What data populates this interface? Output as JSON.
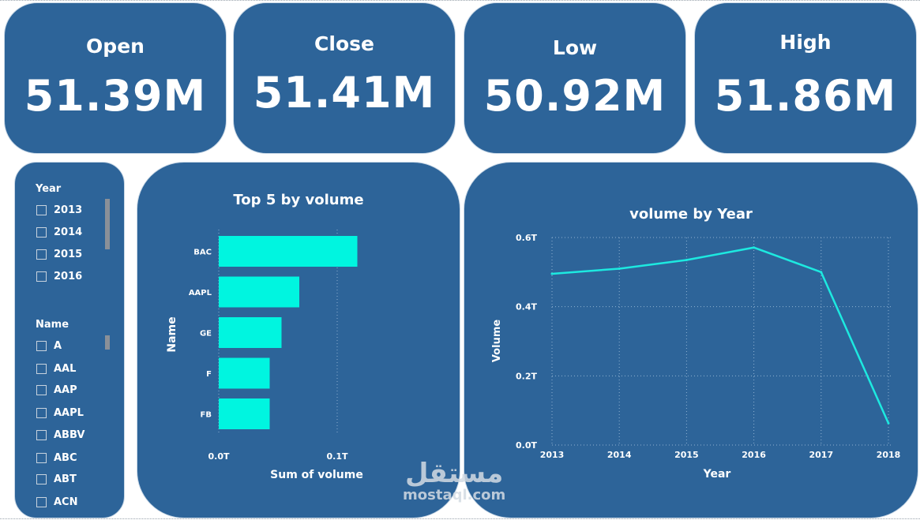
{
  "kpis": {
    "open": {
      "label": "Open",
      "value": "51.39M"
    },
    "close": {
      "label": "Close",
      "value": "51.41M"
    },
    "low": {
      "label": "Low",
      "value": "50.92M"
    },
    "high": {
      "label": "High",
      "value": "51.86M"
    }
  },
  "slicers": {
    "year": {
      "header": "Year",
      "items": [
        "2013",
        "2014",
        "2015",
        "2016"
      ]
    },
    "name": {
      "header": "Name",
      "items": [
        "A",
        "AAL",
        "AAP",
        "AAPL",
        "ABBV",
        "ABC",
        "ABT",
        "ACN"
      ]
    }
  },
  "chart_data": [
    {
      "type": "bar",
      "orientation": "horizontal",
      "title": "Top 5 by volume",
      "xlabel": "Sum of volume",
      "ylabel": "Name",
      "categories": [
        "BAC",
        "AAPL",
        "GE",
        "F",
        "FB"
      ],
      "values": [
        0.117,
        0.068,
        0.053,
        0.043,
        0.043
      ],
      "xlim": [
        0,
        0.12
      ],
      "xticks": [
        "0.0T",
        "0.1T"
      ],
      "xtick_values": [
        0,
        0.1
      ],
      "grid": true,
      "color": "#00f5e0"
    },
    {
      "type": "line",
      "title": "volume by Year",
      "xlabel": "Year",
      "ylabel": "Volume",
      "x": [
        "2013",
        "2014",
        "2015",
        "2016",
        "2017",
        "2018"
      ],
      "y": [
        0.495,
        0.51,
        0.535,
        0.571,
        0.5,
        0.063
      ],
      "ylim": [
        0,
        0.6
      ],
      "yticks": [
        "0.0T",
        "0.2T",
        "0.4T",
        "0.6T"
      ],
      "ytick_values": [
        0,
        0.2,
        0.4,
        0.6
      ],
      "grid": true,
      "color": "#1de9e0"
    }
  ],
  "watermark": {
    "arabic": "مستقل",
    "latin": "mostaql.com"
  }
}
